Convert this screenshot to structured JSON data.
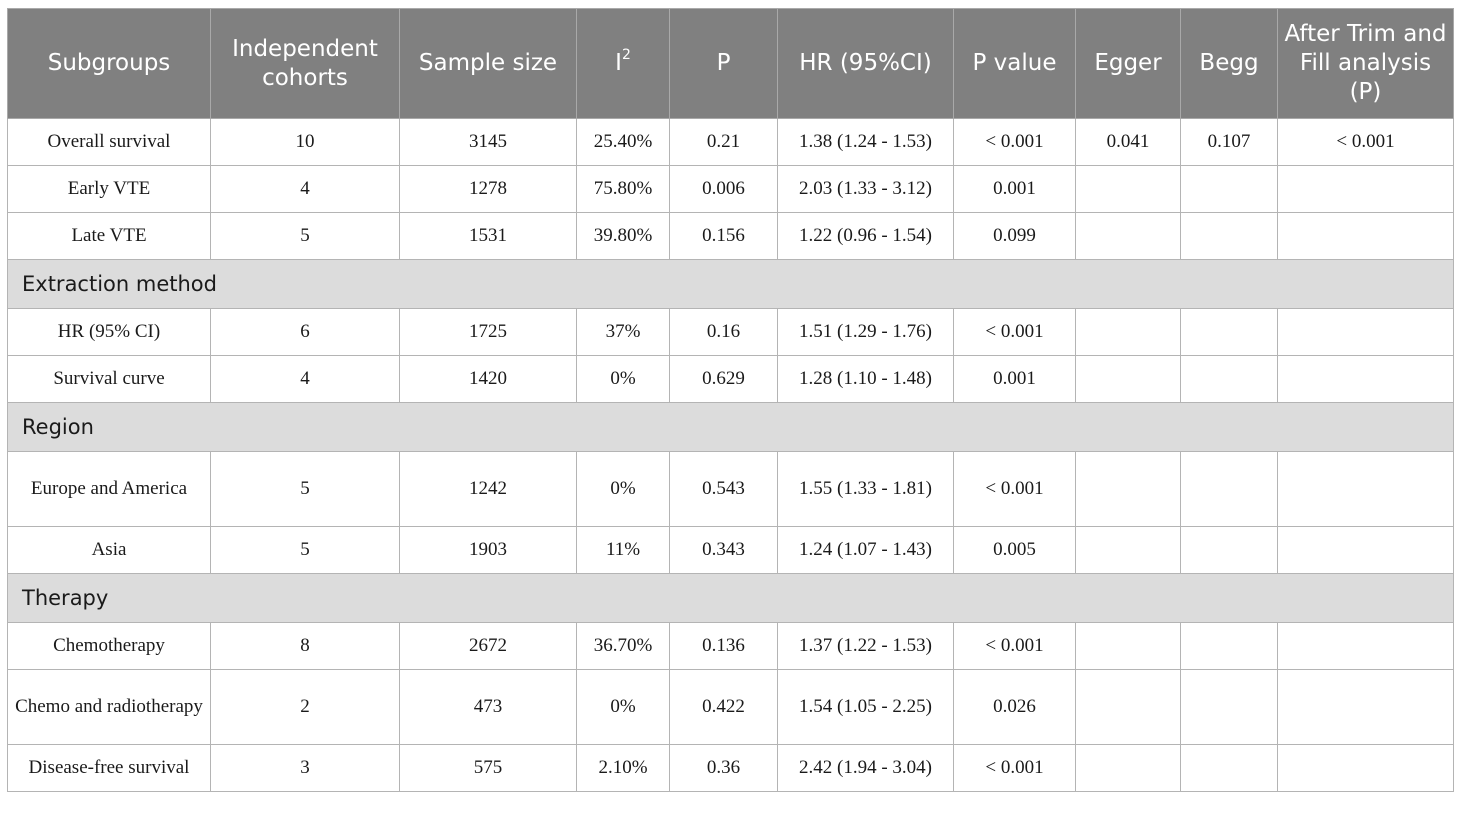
{
  "headers": {
    "subgroups": "Subgroups",
    "cohorts": "Independent cohorts",
    "sample_size": "Sample size",
    "i2_base": "I",
    "i2_sup": "2",
    "p": "P",
    "hr": "HR (95%CI)",
    "p_value": "P value",
    "egger": "Egger",
    "begg": "Begg",
    "trim_fill": "After Trim and Fill analysis (P)"
  },
  "rows": [
    {
      "subgroup": "Overall survival",
      "cohorts": "10",
      "sample": "3145",
      "i2": "25.40%",
      "p": "0.21",
      "hr": "1.38 (1.24 - 1.53)",
      "pvalue": "< 0.001",
      "egger": "0.041",
      "begg": "0.107",
      "trim": "< 0.001"
    },
    {
      "subgroup": "Early VTE",
      "cohorts": "4",
      "sample": "1278",
      "i2": "75.80%",
      "p": "0.006",
      "hr": "2.03 (1.33 - 3.12)",
      "pvalue": "0.001",
      "egger": "",
      "begg": "",
      "trim": ""
    },
    {
      "subgroup": "Late VTE",
      "cohorts": "5",
      "sample": "1531",
      "i2": "39.80%",
      "p": "0.156",
      "hr": "1.22 (0.96 - 1.54)",
      "pvalue": "0.099",
      "egger": "",
      "begg": "",
      "trim": ""
    }
  ],
  "sections": [
    {
      "title": "Extraction method",
      "rows": [
        {
          "subgroup": "HR (95% CI)",
          "cohorts": "6",
          "sample": "1725",
          "i2": "37%",
          "p": "0.16",
          "hr": "1.51 (1.29 - 1.76)",
          "pvalue": "< 0.001",
          "egger": "",
          "begg": "",
          "trim": ""
        },
        {
          "subgroup": "Survival curve",
          "cohorts": "4",
          "sample": "1420",
          "i2": "0%",
          "p": "0.629",
          "hr": "1.28 (1.10 - 1.48)",
          "pvalue": "0.001",
          "egger": "",
          "begg": "",
          "trim": ""
        }
      ]
    },
    {
      "title": "Region",
      "rows": [
        {
          "subgroup": "Europe and America",
          "cohorts": "5",
          "sample": "1242",
          "i2": "0%",
          "p": "0.543",
          "hr": "1.55 (1.33 - 1.81)",
          "pvalue": "< 0.001",
          "egger": "",
          "begg": "",
          "trim": ""
        },
        {
          "subgroup": "Asia",
          "cohorts": "5",
          "sample": "1903",
          "i2": "11%",
          "p": "0.343",
          "hr": "1.24 (1.07 - 1.43)",
          "pvalue": "0.005",
          "egger": "",
          "begg": "",
          "trim": ""
        }
      ]
    },
    {
      "title": "Therapy",
      "rows": [
        {
          "subgroup": "Chemotherapy",
          "cohorts": "8",
          "sample": "2672",
          "i2": "36.70%",
          "p": "0.136",
          "hr": "1.37 (1.22 - 1.53)",
          "pvalue": "< 0.001",
          "egger": "",
          "begg": "",
          "trim": ""
        },
        {
          "subgroup": "Chemo and radiotherapy",
          "cohorts": "2",
          "sample": "473",
          "i2": "0%",
          "p": "0.422",
          "hr": "1.54 (1.05 - 2.25)",
          "pvalue": "0.026",
          "egger": "",
          "begg": "",
          "trim": ""
        },
        {
          "subgroup": "Disease-free survival",
          "cohorts": "3",
          "sample": "575",
          "i2": "2.10%",
          "p": "0.36",
          "hr": "2.42 (1.94 - 3.04)",
          "pvalue": "< 0.001",
          "egger": "",
          "begg": "",
          "trim": ""
        }
      ]
    }
  ]
}
